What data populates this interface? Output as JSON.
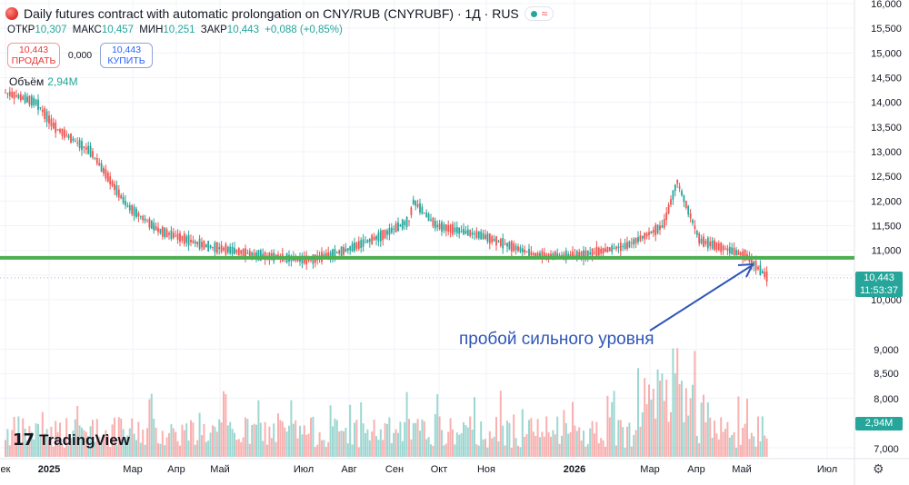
{
  "header": {
    "title": "Daily futures contract with automatic prolongation on CNY/RUB (CNYRUBF) · 1Д · RUS",
    "ohlc": [
      {
        "label": "ОТКР",
        "value": "10,307"
      },
      {
        "label": "МАКС",
        "value": "10,457"
      },
      {
        "label": "МИН",
        "value": "10,251"
      },
      {
        "label": "ЗАКР",
        "value": "10,443"
      }
    ],
    "change": "+0,088 (+0,85%)"
  },
  "trade": {
    "sell_price": "10,443",
    "sell_label": "ПРОДАТЬ",
    "spread": "0,000",
    "buy_price": "10,443",
    "buy_label": "КУПИТЬ"
  },
  "volume": {
    "label": "Объём",
    "value": "2,94M"
  },
  "price_tag": {
    "price": "10,443",
    "countdown": "11:53:37"
  },
  "volume_tag": "2,94M",
  "annotation": "пробой сильного уровня",
  "branding": "TradingView",
  "colors": {
    "up": "#26a69a",
    "down": "#ef5350",
    "level": "#4caf50",
    "arrow": "#2f56b8",
    "grid": "#f0f3fa"
  },
  "chart_data": {
    "type": "line",
    "title": "Daily futures contract with automatic prolongation on CNY/RUB (CNYRUBF)",
    "y_axis": {
      "ticks": [
        "16,000",
        "15,500",
        "15,000",
        "14,500",
        "14,000",
        "13,500",
        "13,000",
        "12,500",
        "12,000",
        "11,500",
        "11,000",
        "10,500",
        "10,000",
        "9,000",
        "8,500",
        "8,000",
        "7,000"
      ],
      "range": [
        6.85,
        16.0
      ]
    },
    "x_axis": {
      "ticks": [
        "ек",
        "2025",
        "Мар",
        "Апр",
        "Май",
        "Июл",
        "Авг",
        "Сен",
        "Окт",
        "Ноя",
        "2026",
        "Мар",
        "Апр",
        "Май",
        "Июл"
      ],
      "bold": [
        "2025",
        "2026"
      ]
    },
    "series": [
      {
        "x": [
          "2024-12",
          "2025-01-early",
          "2025-01",
          "2025-02",
          "2025-03",
          "2025-04",
          "2025-05",
          "2025-06",
          "2025-07",
          "2025-08",
          "2025-08-late",
          "2025-09",
          "2025-09-mid",
          "2025-10",
          "2025-11",
          "2025-12",
          "2026-01",
          "2026-02",
          "2026-03",
          "2026-03-peak",
          "2026-04",
          "2026-05",
          "2026-05-now"
        ],
        "y": [
          14.2,
          14.0,
          13.5,
          13.0,
          11.9,
          11.4,
          11.1,
          10.9,
          10.8,
          11.0,
          11.3,
          11.6,
          12.0,
          11.5,
          11.3,
          10.9,
          10.9,
          11.1,
          11.5,
          12.4,
          11.2,
          10.9,
          10.443
        ]
      }
    ],
    "level_line": 10.85,
    "last_price": 10.443,
    "volume": {
      "last": "2,94M",
      "peak_region": "Мар 2026"
    }
  }
}
